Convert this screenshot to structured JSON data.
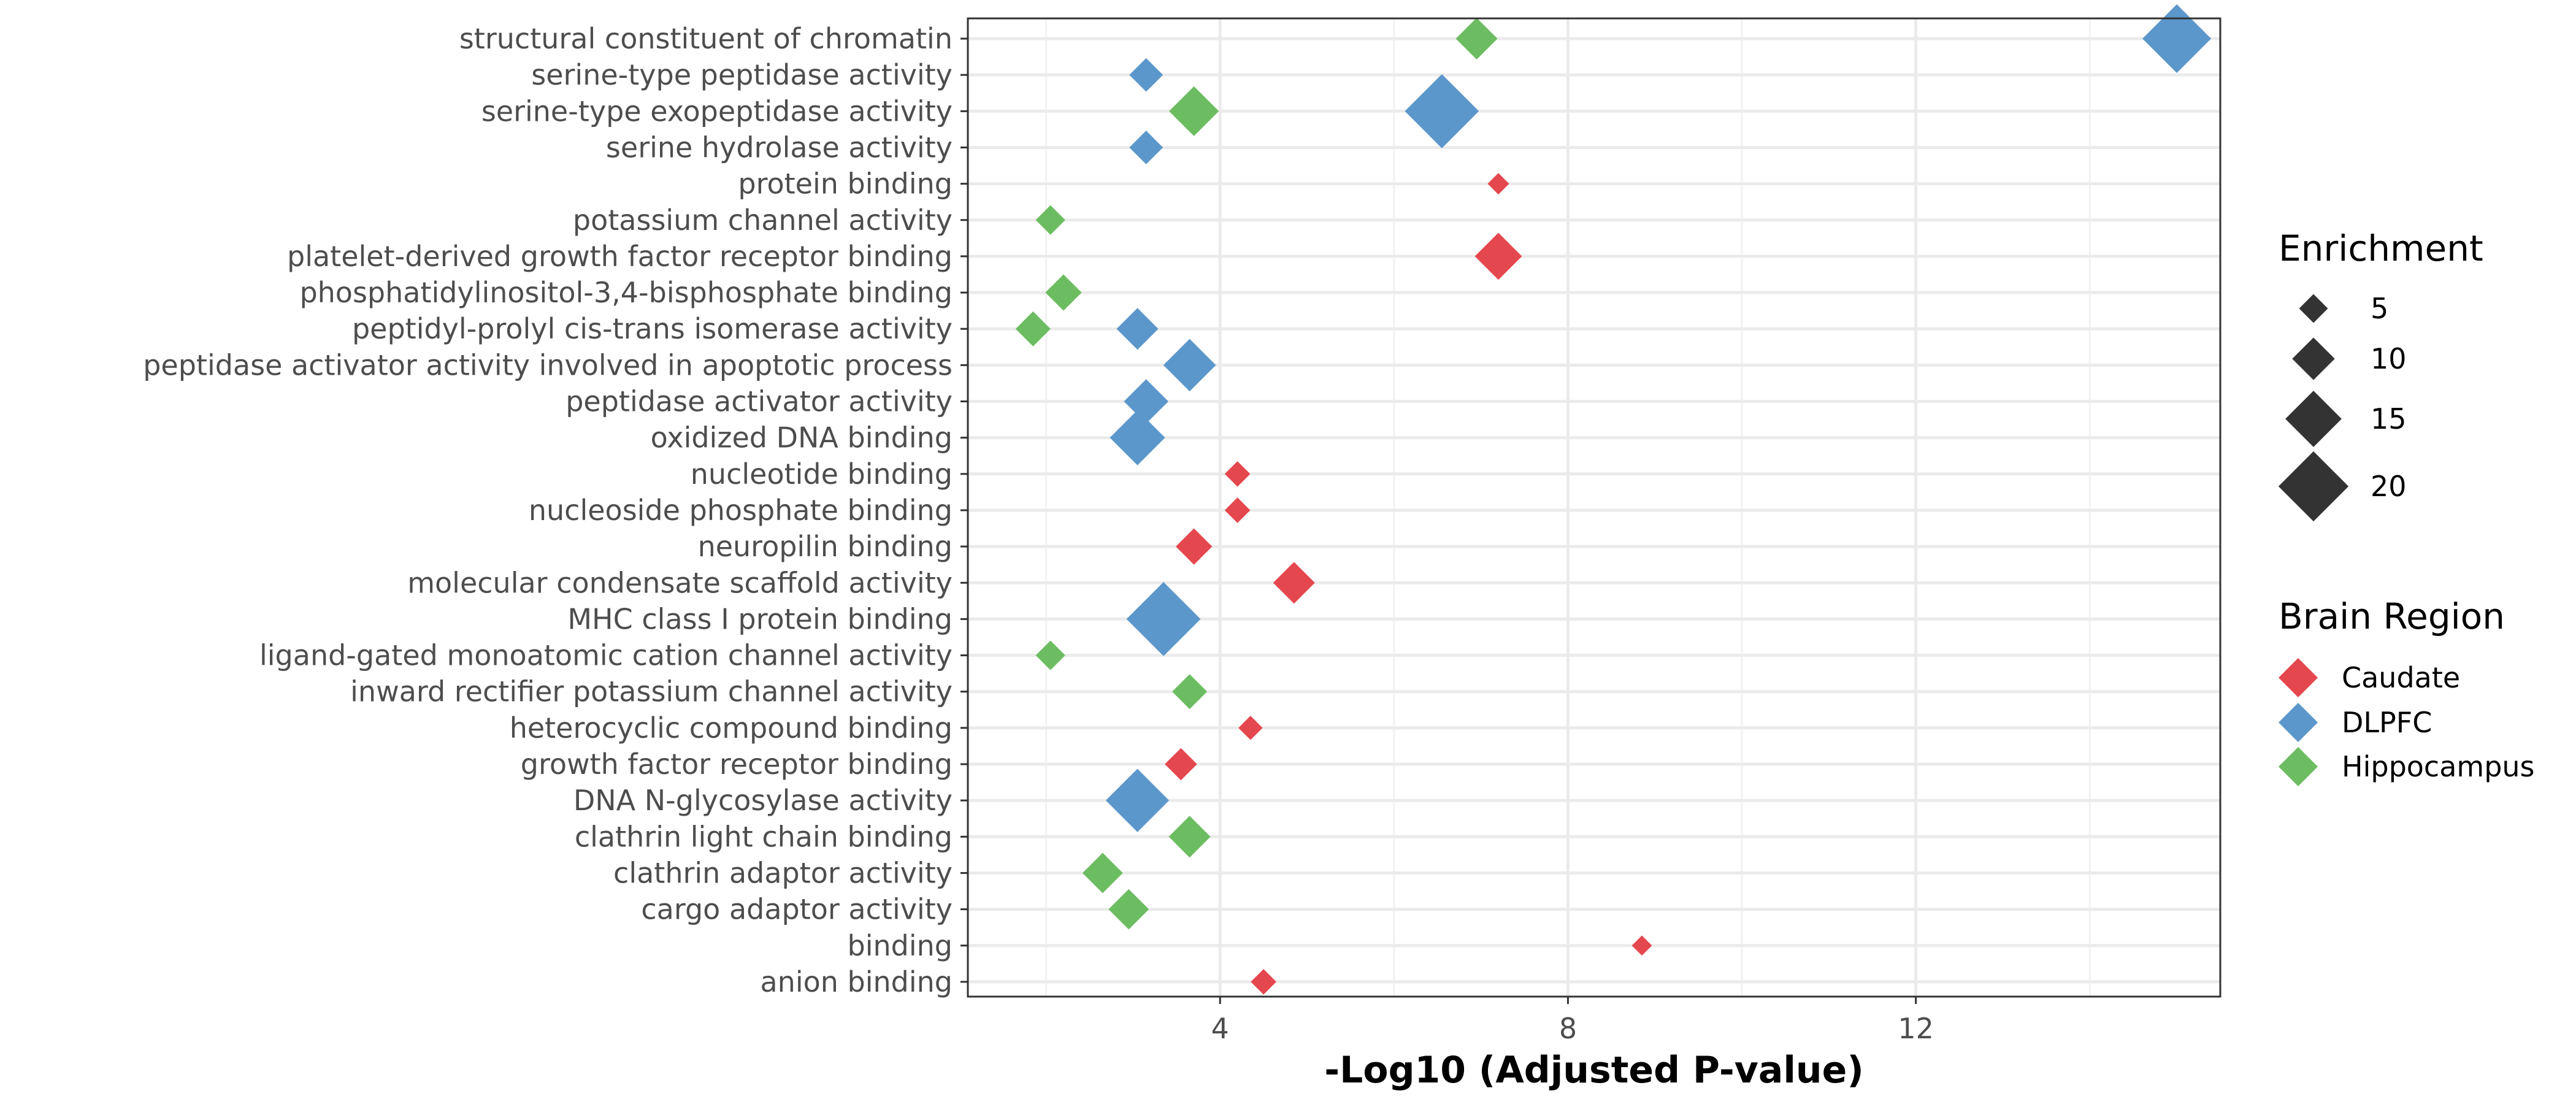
{
  "chart_data": {
    "type": "scatter",
    "xlabel": "-Log10 (Adjusted P-value)",
    "ylabel": "",
    "xlim": [
      1.1,
      15.5
    ],
    "xticks": [
      4,
      8,
      12
    ],
    "grid": true,
    "legend_position": "right",
    "categories": [
      "structural constituent of chromatin",
      "serine-type peptidase activity",
      "serine-type exopeptidase activity",
      "serine hydrolase activity",
      "protein binding",
      "potassium channel activity",
      "platelet-derived growth factor receptor binding",
      "phosphatidylinositol-3,4-bisphosphate binding",
      "peptidyl-prolyl cis-trans isomerase activity",
      "peptidase activator activity involved in apoptotic process",
      "peptidase activator activity",
      "oxidized DNA binding",
      "nucleotide binding",
      "nucleoside phosphate binding",
      "neuropilin binding",
      "molecular condensate scaffold activity",
      "MHC class I protein binding",
      "ligand-gated monoatomic cation channel activity",
      "inward rectifier potassium channel activity",
      "heterocyclic compound binding",
      "growth factor receptor binding",
      "DNA N-glycosylase activity",
      "clathrin light chain binding",
      "clathrin adaptor activity",
      "cargo adaptor activity",
      "binding",
      "anion binding"
    ],
    "size_legend": {
      "title": "Enrichment",
      "values": [
        5,
        10,
        15,
        20
      ],
      "labels": [
        "5",
        "10",
        "15",
        "20"
      ]
    },
    "color_legend": {
      "title": "Brain Region",
      "items": [
        {
          "name": "Caudate",
          "color": "#e4474d"
        },
        {
          "name": "DLPFC",
          "color": "#5b97cb"
        },
        {
          "name": "Hippocampus",
          "color": "#6cbd61"
        }
      ]
    },
    "series": [
      {
        "name": "Caudate",
        "color": "#e4474d",
        "points": [
          {
            "term": "protein binding",
            "x": 7.2,
            "enrichment": 2.5
          },
          {
            "term": "platelet-derived growth factor receptor binding",
            "x": 7.2,
            "enrichment": 12
          },
          {
            "term": "nucleotide binding",
            "x": 4.2,
            "enrichment": 4
          },
          {
            "term": "nucleoside phosphate binding",
            "x": 4.2,
            "enrichment": 4
          },
          {
            "term": "neuropilin binding",
            "x": 3.7,
            "enrichment": 8
          },
          {
            "term": "molecular condensate scaffold activity",
            "x": 4.85,
            "enrichment": 10
          },
          {
            "term": "heterocyclic compound binding",
            "x": 4.35,
            "enrichment": 3.5
          },
          {
            "term": "growth factor receptor binding",
            "x": 3.55,
            "enrichment": 6.5
          },
          {
            "term": "binding",
            "x": 8.85,
            "enrichment": 2
          },
          {
            "term": "anion binding",
            "x": 4.5,
            "enrichment": 4
          }
        ]
      },
      {
        "name": "DLPFC",
        "color": "#5b97cb",
        "points": [
          {
            "term": "structural constituent of chromatin",
            "x": 15.0,
            "enrichment": 20
          },
          {
            "term": "serine-type peptidase activity",
            "x": 3.15,
            "enrichment": 7
          },
          {
            "term": "serine-type exopeptidase activity",
            "x": 6.55,
            "enrichment": 22
          },
          {
            "term": "serine hydrolase activity",
            "x": 3.15,
            "enrichment": 7
          },
          {
            "term": "peptidyl-prolyl cis-trans isomerase activity",
            "x": 3.05,
            "enrichment": 10
          },
          {
            "term": "peptidase activator activity involved in apoptotic process",
            "x": 3.65,
            "enrichment": 14
          },
          {
            "term": "peptidase activator activity",
            "x": 3.15,
            "enrichment": 11
          },
          {
            "term": "oxidized DNA binding",
            "x": 3.05,
            "enrichment": 15
          },
          {
            "term": "MHC class I protein binding",
            "x": 3.35,
            "enrichment": 22
          },
          {
            "term": "DNA N-glycosylase activity",
            "x": 3.05,
            "enrichment": 18
          }
        ]
      },
      {
        "name": "Hippocampus",
        "color": "#6cbd61",
        "points": [
          {
            "term": "structural constituent of chromatin",
            "x": 6.95,
            "enrichment": 10
          },
          {
            "term": "serine-type exopeptidase activity",
            "x": 3.7,
            "enrichment": 13
          },
          {
            "term": "potassium channel activity",
            "x": 2.05,
            "enrichment": 5.5
          },
          {
            "term": "phosphatidylinositol-3,4-bisphosphate binding",
            "x": 2.2,
            "enrichment": 8
          },
          {
            "term": "peptidyl-prolyl cis-trans isomerase activity",
            "x": 1.85,
            "enrichment": 7.5
          },
          {
            "term": "ligand-gated monoatomic cation channel activity",
            "x": 2.05,
            "enrichment": 5.5
          },
          {
            "term": "inward rectifier potassium channel activity",
            "x": 3.65,
            "enrichment": 7.5
          },
          {
            "term": "clathrin light chain binding",
            "x": 3.65,
            "enrichment": 10
          },
          {
            "term": "clathrin adaptor activity",
            "x": 2.65,
            "enrichment": 9.5
          },
          {
            "term": "cargo adaptor activity",
            "x": 2.95,
            "enrichment": 9.5
          }
        ]
      }
    ]
  }
}
